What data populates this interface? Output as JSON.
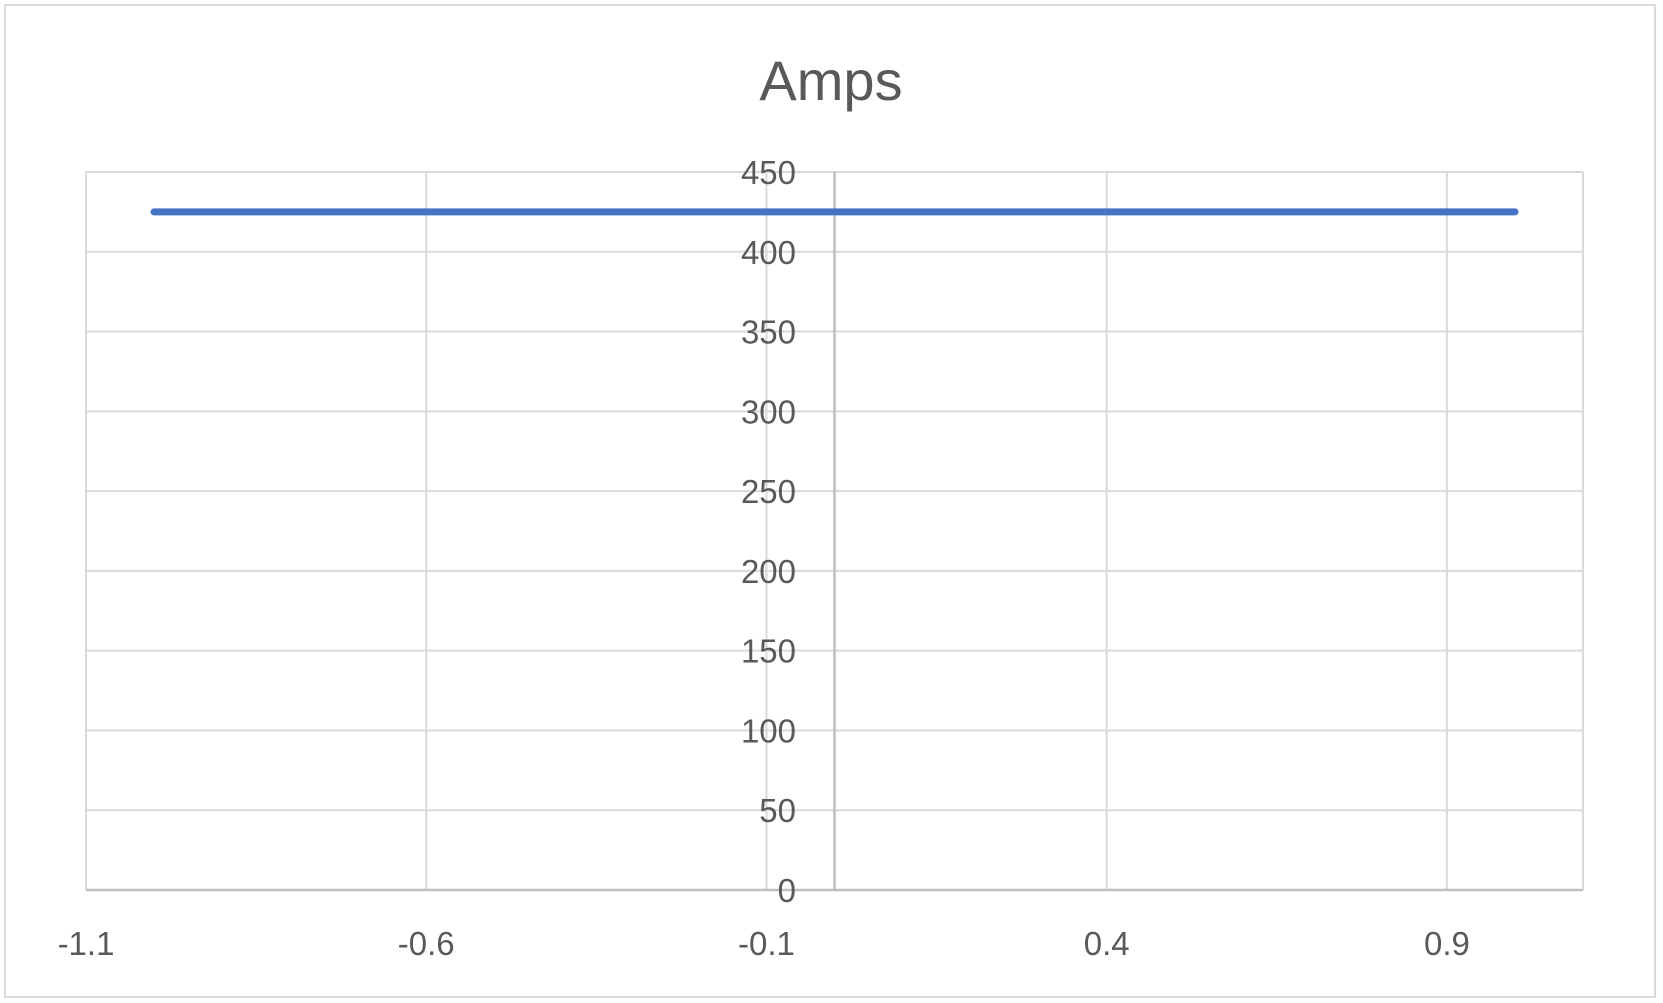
{
  "chart_data": {
    "type": "scatter",
    "title": "Amps",
    "xlabel": "",
    "ylabel": "",
    "xlim": [
      -1.1,
      1.1
    ],
    "ylim": [
      0,
      450
    ],
    "x_ticks": [
      -1.1,
      -0.6,
      -0.1,
      0.4,
      0.9
    ],
    "x_tick_labels": [
      "-1.1",
      "-0.6",
      "-0.1",
      "0.4",
      "0.9"
    ],
    "y_ticks": [
      0,
      50,
      100,
      150,
      200,
      250,
      300,
      350,
      400,
      450
    ],
    "y_tick_labels": [
      "0",
      "50",
      "100",
      "150",
      "200",
      "250",
      "300",
      "350",
      "400",
      "450"
    ],
    "grid": true,
    "legend": "none",
    "series": [
      {
        "color": "#4472c4",
        "mode": "lines",
        "x": [
          -1.0,
          1.0
        ],
        "y": [
          425,
          425
        ]
      }
    ]
  }
}
